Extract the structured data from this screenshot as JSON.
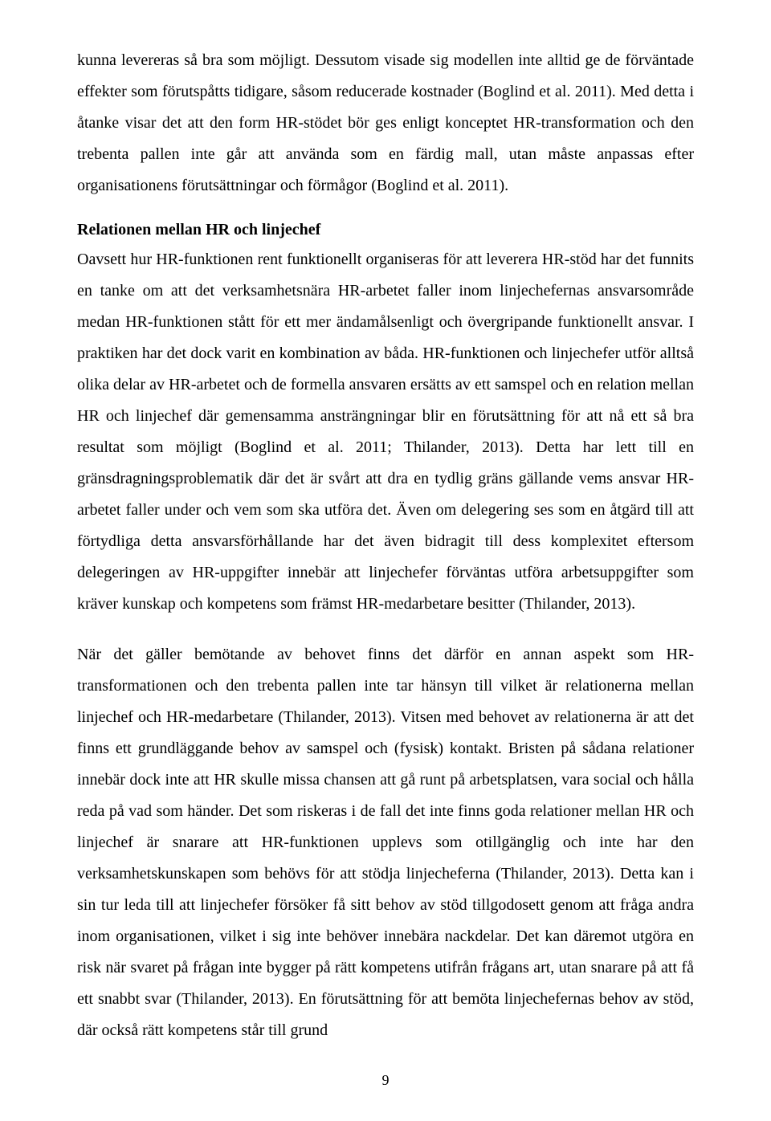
{
  "paragraphs": {
    "p1": "kunna levereras så bra som möjligt. Dessutom visade sig modellen inte alltid ge de förväntade effekter som förutspåtts tidigare, såsom reducerade kostnader (Boglind et al. 2011). Med detta i åtanke visar det att den form HR-stödet bör ges enligt konceptet HR-transformation och den trebenta pallen inte går att använda som en färdig mall, utan måste anpassas efter organisationens förutsättningar och förmågor (Boglind et al. 2011).",
    "heading": "Relationen mellan HR och linjechef",
    "p2": "Oavsett hur HR-funktionen rent funktionellt organiseras för att leverera HR-stöd har det funnits en tanke om att det verksamhetsnära HR-arbetet faller inom linjechefernas ansvarsområde medan HR-funktionen stått för ett mer ändamålsenligt och övergripande funktionellt ansvar. I praktiken har det dock varit en kombination av båda. HR-funktionen och linjechefer utför alltså olika delar av HR-arbetet och de formella ansvaren ersätts av ett samspel och en relation mellan HR och linjechef där gemensamma ansträngningar blir en förutsättning för att nå ett så bra resultat som möjligt (Boglind et al. 2011; Thilander, 2013). Detta har lett till en gränsdragningsproblematik där det är svårt att dra en tydlig gräns gällande vems ansvar HR-arbetet faller under och vem som ska utföra det. Även om delegering ses som en åtgärd till att förtydliga detta ansvarsförhållande har det även bidragit till dess komplexitet eftersom delegeringen av HR-uppgifter innebär att linjechefer förväntas utföra arbetsuppgifter som kräver kunskap och kompetens som främst HR-medarbetare besitter (Thilander, 2013).",
    "p3": "När det gäller bemötande av behovet finns det därför en annan aspekt som HR-transformationen och den trebenta pallen inte tar hänsyn till vilket är relationerna mellan linjechef och HR-medarbetare (Thilander, 2013). Vitsen med behovet av relationerna är att det finns ett grundläggande behov av samspel och (fysisk) kontakt. Bristen på sådana relationer innebär dock inte att HR skulle missa chansen att gå runt på arbetsplatsen, vara social och hålla reda på vad som händer. Det som riskeras i de fall det inte finns goda relationer mellan HR och linjechef är snarare att HR-funktionen upplevs som otillgänglig och inte har den verksamhetskunskapen som behövs för att stödja linjecheferna (Thilander, 2013). Detta kan i sin tur leda till att linjechefer försöker få sitt behov av stöd tillgodosett genom att fråga andra inom organisationen, vilket i sig inte behöver innebära nackdelar. Det kan däremot utgöra en risk när svaret på frågan inte bygger på rätt kompetens utifrån frågans art, utan snarare på att få ett snabbt svar (Thilander, 2013). En förutsättning för att bemöta linjechefernas behov av stöd, där också rätt kompetens står till grund"
  },
  "page_number": "9"
}
